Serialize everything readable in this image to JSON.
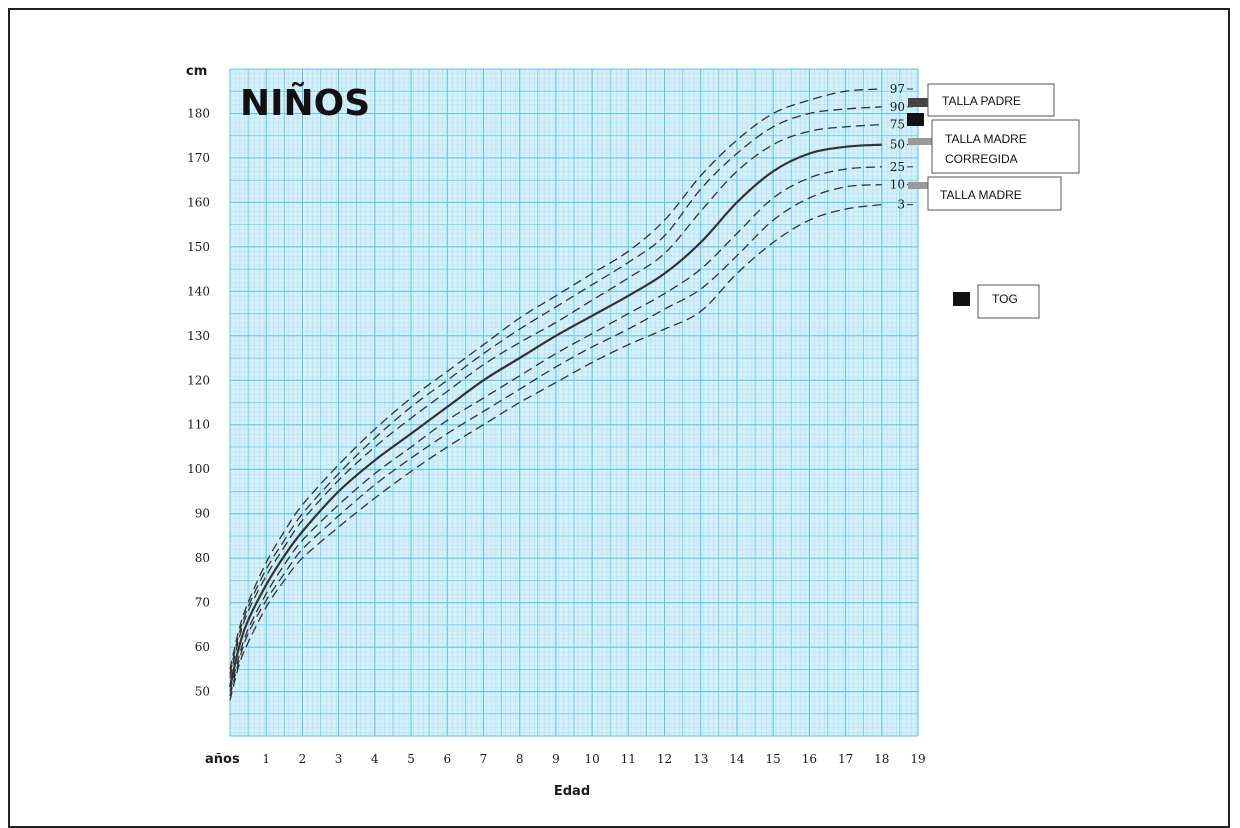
{
  "chart_data": {
    "type": "line",
    "title": "NIÑOS",
    "ylabel": "cm",
    "x_axis_prefix": "años",
    "xlabel": "Edad",
    "xlim": [
      0,
      19
    ],
    "ylim": [
      40,
      190
    ],
    "y_ticks": [
      50,
      60,
      70,
      80,
      90,
      100,
      110,
      120,
      130,
      140,
      150,
      160,
      170,
      180
    ],
    "x_ticks": [
      1,
      2,
      3,
      4,
      5,
      6,
      7,
      8,
      9,
      10,
      11,
      12,
      13,
      14,
      15,
      16,
      17,
      18,
      19
    ],
    "grid": true,
    "x": [
      0,
      0.25,
      0.5,
      1,
      1.5,
      2,
      3,
      4,
      5,
      6,
      7,
      8,
      9,
      10,
      11,
      12,
      13,
      14,
      15,
      16,
      17,
      18
    ],
    "series": [
      {
        "name": "97",
        "values": [
          55,
          64,
          70,
          79,
          86,
          92,
          101,
          109,
          116,
          122,
          128,
          134,
          139,
          144,
          149,
          156,
          166,
          174,
          180,
          183,
          185,
          185.5
        ]
      },
      {
        "name": "90",
        "values": [
          54,
          63,
          69,
          77.5,
          84,
          90,
          99,
          107,
          114,
          120,
          126,
          131.5,
          136.5,
          141.5,
          146.5,
          152.5,
          163,
          171,
          177,
          180,
          181,
          181.5
        ]
      },
      {
        "name": "75",
        "values": [
          53,
          62,
          68,
          76,
          82.5,
          88.5,
          97.5,
          105,
          111.5,
          117.5,
          123.5,
          128.5,
          133,
          138,
          143,
          148.5,
          158,
          167,
          173,
          176,
          177,
          177.5
        ]
      },
      {
        "name": "50",
        "values": [
          51,
          60,
          66,
          74,
          80.5,
          86,
          95,
          102,
          108,
          114,
          120,
          125,
          130,
          134.5,
          139,
          144,
          151,
          160,
          167,
          171,
          172.5,
          173
        ]
      },
      {
        "name": "25",
        "values": [
          50,
          58,
          64,
          72,
          78.5,
          84,
          92,
          99,
          105,
          111,
          116,
          121,
          126,
          130.5,
          135,
          139.5,
          145,
          153,
          161,
          165.5,
          167.5,
          168
        ]
      },
      {
        "name": "10",
        "values": [
          49,
          57,
          63,
          70.5,
          76.5,
          82,
          89.5,
          96.5,
          102.5,
          108,
          113,
          118,
          123,
          127.5,
          131.5,
          136,
          140.5,
          148,
          156,
          161,
          163.5,
          164
        ]
      },
      {
        "name": "3",
        "values": [
          48,
          56,
          61,
          69,
          75,
          80,
          87,
          93.5,
          99.5,
          105,
          110,
          115,
          119.5,
          124,
          128,
          131.5,
          135.5,
          144,
          151,
          156,
          158.5,
          159.5
        ]
      }
    ],
    "legend": [
      {
        "label": "TALLA PADRE",
        "marker": "dark-bar"
      },
      {
        "label": "TALLA MADRE CORREGIDA",
        "marker": "gray-bar"
      },
      {
        "label": "TALLA MADRE",
        "marker": "gray-bar"
      },
      {
        "label": "TOG",
        "marker": "black-square"
      }
    ],
    "colors": {
      "grid_bg": "#d6f0f9",
      "grid_line": "#5dc4e4",
      "curve": "#333333",
      "marker_dark": "#444444",
      "marker_gray": "#9a9a9a"
    }
  }
}
